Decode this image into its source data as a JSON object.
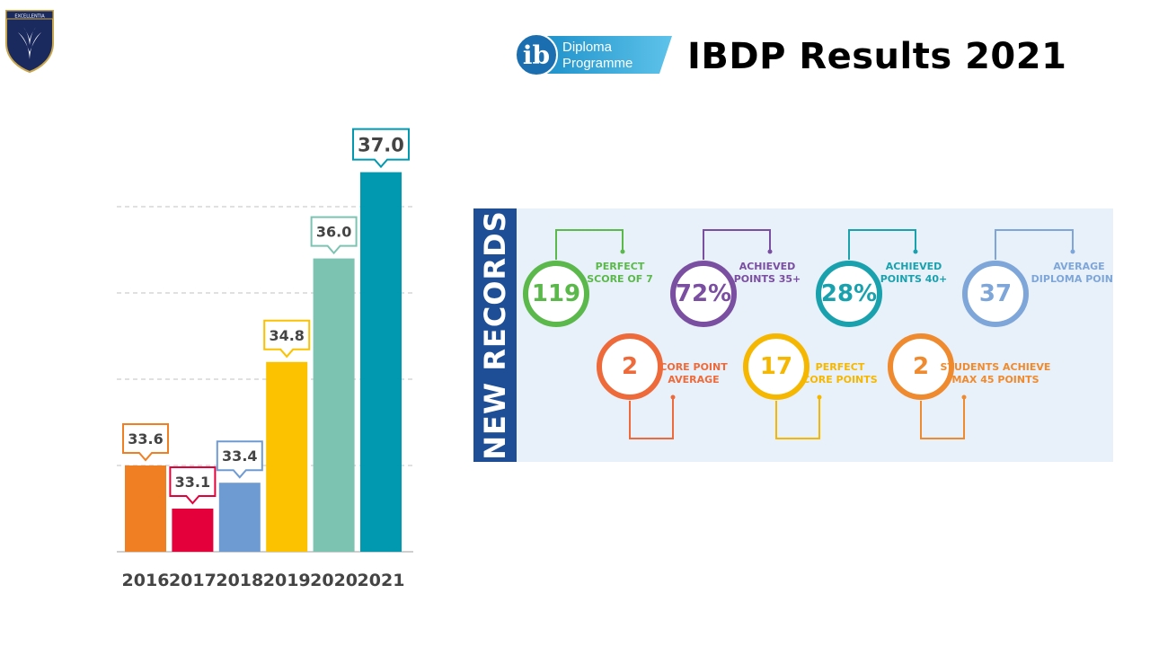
{
  "header": {
    "title": "IBDP Results 2021",
    "ib_logo_letters": "ib",
    "ib_logo_line1": "Diploma",
    "ib_logo_line2": "Programme",
    "crest_text": "EXCELLENTIA"
  },
  "chart_data": {
    "type": "bar",
    "categories": [
      "2016",
      "2017",
      "2018",
      "2019",
      "2020",
      "2021"
    ],
    "values": [
      33.6,
      33.1,
      33.4,
      34.8,
      36.0,
      37.0
    ],
    "data_labels": [
      "33.6",
      "33.1",
      "33.4",
      "34.8",
      "36.0",
      "37.0"
    ],
    "colors": [
      "#ef7f22",
      "#e4003b",
      "#6f9bd3",
      "#fcc200",
      "#7cc3b1",
      "#0099b0"
    ],
    "title": "",
    "xlabel": "",
    "ylabel": "",
    "ylim": [
      32.6,
      37.6
    ],
    "grid": true
  },
  "records": {
    "heading": "NEW RECORDS",
    "items": [
      {
        "value": "119",
        "caption": [
          "PERFECT",
          "SCORE OF 7"
        ],
        "color": "#5bb84a"
      },
      {
        "value": "72%",
        "caption": [
          "ACHIEVED",
          "POINTS 35+"
        ],
        "color": "#7a4ea0"
      },
      {
        "value": "28%",
        "caption": [
          "ACHIEVED",
          "POINTS 40+"
        ],
        "color": "#1aa1ae"
      },
      {
        "value": "37",
        "caption": [
          "AVERAGE",
          "DIPLOMA POINTS"
        ],
        "color": "#7ea6d8"
      },
      {
        "value": "2",
        "caption": [
          "CORE POINT",
          "AVERAGE"
        ],
        "color": "#ee6a3a"
      },
      {
        "value": "17",
        "caption": [
          "PERFECT",
          "CORE POINTS"
        ],
        "color": "#f5b700"
      },
      {
        "value": "2",
        "caption": [
          "STUDENTS ACHIEVE",
          "MAX 45 POINTS"
        ],
        "color": "#ef8a2e"
      }
    ]
  }
}
